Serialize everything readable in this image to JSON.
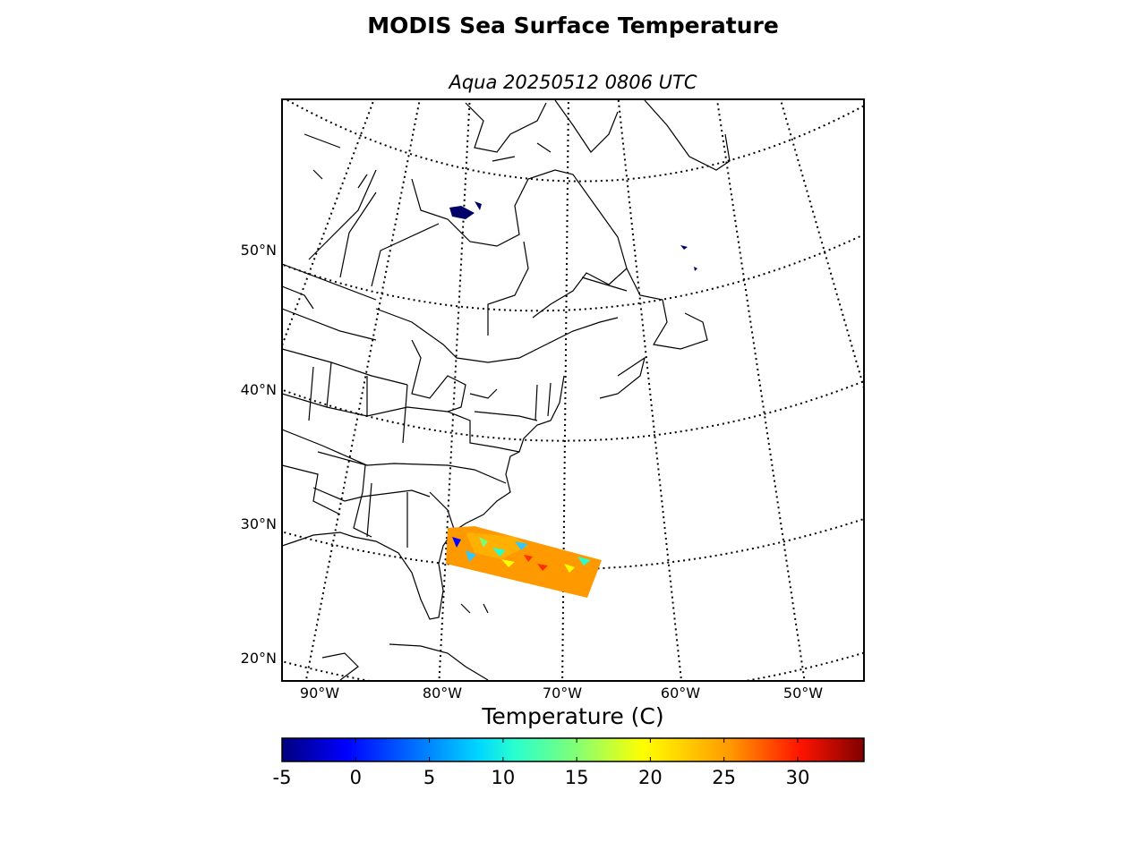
{
  "title": "MODIS Sea Surface Temperature",
  "subtitle": "Aqua 20250512 0806 UTC",
  "map": {
    "latitude_labels": [
      "50°N",
      "40°N",
      "30°N",
      "20°N"
    ],
    "longitude_labels": [
      "90°W",
      "80°W",
      "70°W",
      "60°W",
      "50°W"
    ],
    "graticule": "dotted",
    "projection": "conic",
    "data_swath": "SST swath off the southeast US coast near 25–30°N, 67–78°W"
  },
  "colorbar": {
    "label": "Temperature (C)",
    "min": -5,
    "max": 34.5,
    "colormap": "jet",
    "ticks": [
      "-5",
      "0",
      "5",
      "10",
      "15",
      "20",
      "25",
      "30"
    ]
  },
  "colors": {
    "swath_warm": "#ff9900",
    "swath_cool": "#33c6ff",
    "land_outline": "#000000"
  }
}
